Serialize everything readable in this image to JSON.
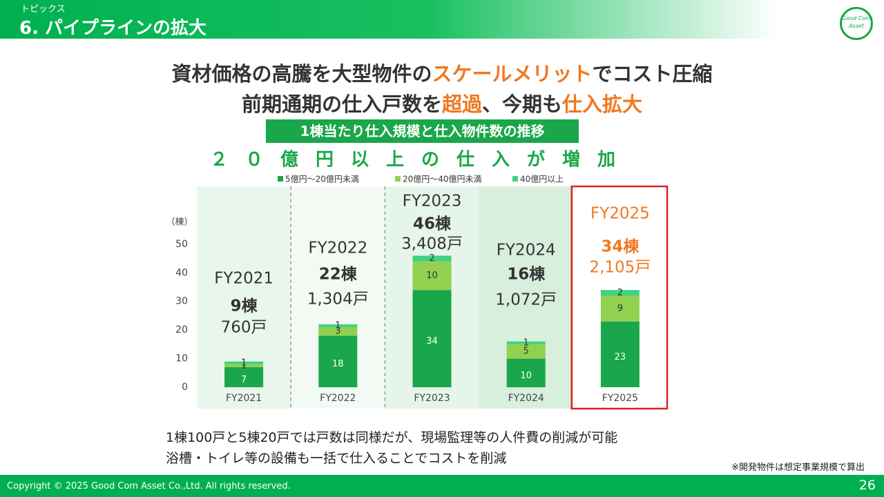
{
  "header": {
    "kicker": "トピックス",
    "title": "6. パイプラインの拡大",
    "logo": "Good Com Asset"
  },
  "headline": {
    "lines": [
      [
        "資材価格の高騰を大型物件の",
        "スケールメリット",
        "でコスト圧縮"
      ],
      [
        "前期通期の仕入戸数を",
        "超過",
        "、今期も",
        "仕入拡大"
      ]
    ]
  },
  "chart_label": "1棟当たり仕入規模と仕入物件数の推移",
  "chart_data": {
    "type": "bar",
    "stacked": true,
    "title": "２０億円以上の仕入が増加",
    "y_label": "（棟）",
    "categories": [
      "FY2021",
      "FY2022",
      "FY2023",
      "FY2024",
      "FY2025"
    ],
    "series": [
      {
        "name": "5億円～20億円未満",
        "color": "#1aa64a",
        "values": [
          7,
          18,
          34,
          10,
          23
        ]
      },
      {
        "name": "20億円～40億円未満",
        "color": "#92d050",
        "values": [
          1,
          3,
          10,
          5,
          9
        ]
      },
      {
        "name": "40億円以上",
        "color": "#3fd27f",
        "values": [
          1,
          1,
          2,
          1,
          2
        ]
      }
    ],
    "ylim": [
      0,
      70
    ],
    "yticks": [
      0,
      10,
      20,
      30,
      40,
      50
    ],
    "annotations": [
      {
        "label": "FY2021",
        "count": "9棟",
        "units": "760戸"
      },
      {
        "label": "FY2022",
        "count": "22棟",
        "units": "1,304戸"
      },
      {
        "label": "FY2023",
        "count": "46棟",
        "units": "3,408戸"
      },
      {
        "label": "FY2024",
        "count": "16棟",
        "units": "1,072戸"
      },
      {
        "label": "FY2025",
        "count": "34棟",
        "units": "2,105戸"
      }
    ]
  },
  "notes": [
    "1棟100戸と5棟20戸では戸数は同様だが、現場監理等の人件費の削減が可能",
    "浴槽・トイレ等の設備も一括で仕入ることでコストを削減"
  ],
  "footnote": "※開発物件は想定事業規模で算出",
  "footer": {
    "copyright": "Copyright © 2025 Good Com Asset Co.,Ltd. All rights reserved.",
    "page": "26"
  }
}
